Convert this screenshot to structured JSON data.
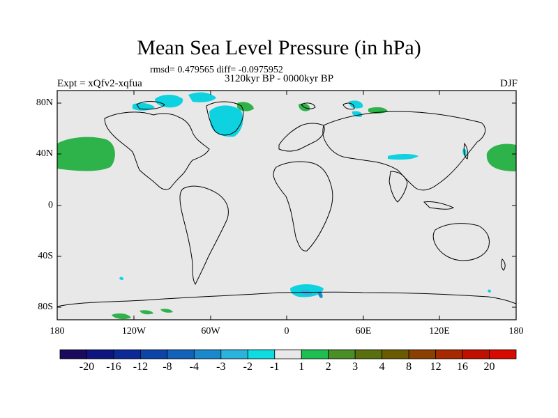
{
  "title": "Mean Sea Level Pressure (in hPa)",
  "stats": "rmsd= 0.479565 diff= -0.0975952",
  "experiment": "Expt = xQfv2-xqfua",
  "period": "3120kyr BP - 0000kyr BP",
  "season": "DJF",
  "lat_labels": [
    "80N",
    "40N",
    "0",
    "40S",
    "80S"
  ],
  "lon_labels": [
    "180",
    "120W",
    "60W",
    "0",
    "60E",
    "120E",
    "180"
  ],
  "colorbar": {
    "labels": [
      "-20",
      "-16",
      "-12",
      "-8",
      "-4",
      "-3",
      "-2",
      "-1",
      "1",
      "2",
      "3",
      "4",
      "8",
      "12",
      "16",
      "20"
    ],
    "colors": [
      "#1a0a5e",
      "#0f1580",
      "#0b2a96",
      "#0c44a8",
      "#1162b8",
      "#1a88cc",
      "#2ab4dc",
      "#0fdce0",
      "#e8e8e8",
      "#1ebe50",
      "#4a8e28",
      "#5a7010",
      "#6a5a00",
      "#8a4000",
      "#a82800",
      "#c01000",
      "#d80a00"
    ]
  },
  "ocean_color": "#e8e8e8",
  "anomaly_colors": {
    "positive_1_2": "#2eb24a",
    "negative_2_1": "#0fd2e0",
    "negative_3_2": "#2ab4dc"
  }
}
